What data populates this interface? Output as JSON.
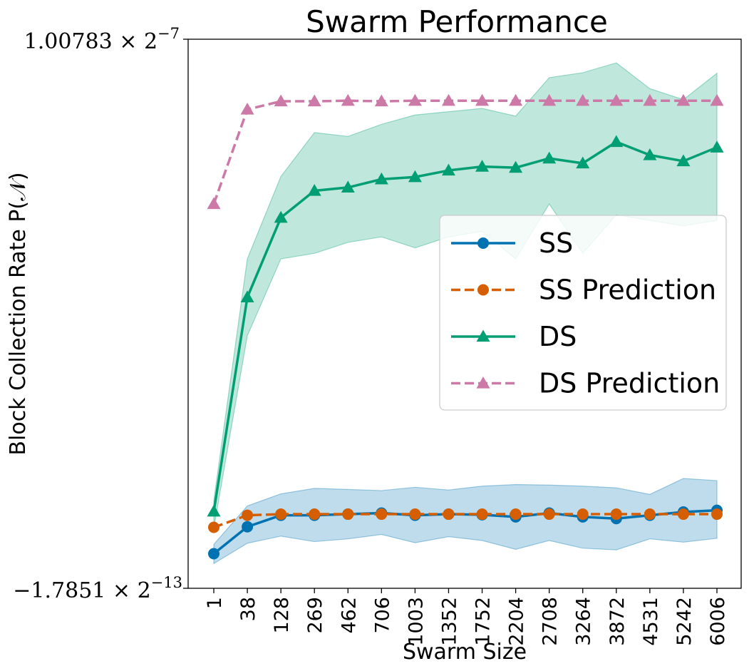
{
  "chart_data": {
    "type": "line",
    "title": "Swarm Performance",
    "xlabel": "Swarm Size",
    "ylabel": "Block Collection Rate P(𝒩)",
    "y_min_label": "−1.7851 × 2",
    "y_min_exp": "−13",
    "y_max_label": "1.00783 × 2",
    "y_max_exp": "−7",
    "ylim": [
      0,
      1
    ],
    "categories": [
      "1",
      "38",
      "128",
      "269",
      "462",
      "706",
      "1003",
      "1352",
      "1752",
      "2204",
      "2708",
      "3264",
      "3872",
      "4531",
      "5242",
      "6006"
    ],
    "legend_position": "center-right",
    "grid": false,
    "series": [
      {
        "name": "SS",
        "color": "#0072B2",
        "marker": "circle",
        "dash": false,
        "values": [
          0.063,
          0.112,
          0.133,
          0.133,
          0.135,
          0.137,
          0.133,
          0.135,
          0.134,
          0.13,
          0.137,
          0.13,
          0.127,
          0.133,
          0.139,
          0.142
        ],
        "band_low": [
          0.045,
          0.082,
          0.095,
          0.085,
          0.09,
          0.098,
          0.083,
          0.094,
          0.087,
          0.071,
          0.087,
          0.073,
          0.07,
          0.09,
          0.084,
          0.091
        ],
        "band_high": [
          0.08,
          0.15,
          0.172,
          0.182,
          0.18,
          0.178,
          0.184,
          0.179,
          0.186,
          0.189,
          0.188,
          0.186,
          0.183,
          0.171,
          0.2,
          0.196
        ]
      },
      {
        "name": "SS Prediction",
        "color": "#D55E00",
        "marker": "circle",
        "dash": true,
        "values": [
          0.111,
          0.133,
          0.135,
          0.135,
          0.135,
          0.135,
          0.135,
          0.135,
          0.135,
          0.135,
          0.135,
          0.135,
          0.135,
          0.135,
          0.135,
          0.135
        ]
      },
      {
        "name": "DS",
        "color": "#009E73",
        "marker": "triangle",
        "dash": false,
        "values": [
          0.14,
          0.53,
          0.675,
          0.724,
          0.73,
          0.745,
          0.749,
          0.761,
          0.768,
          0.766,
          0.783,
          0.774,
          0.813,
          0.789,
          0.778,
          0.803
        ],
        "band_low": [
          0.11,
          0.46,
          0.6,
          0.61,
          0.63,
          0.64,
          0.62,
          0.64,
          0.65,
          0.6,
          0.7,
          0.61,
          0.68,
          0.67,
          0.66,
          0.67
        ],
        "band_high": [
          0.16,
          0.6,
          0.75,
          0.83,
          0.823,
          0.845,
          0.862,
          0.868,
          0.874,
          0.86,
          0.93,
          0.939,
          0.957,
          0.91,
          0.89,
          0.938
        ]
      },
      {
        "name": "DS Prediction",
        "color": "#CC79A7",
        "marker": "triangle",
        "dash": true,
        "values": [
          0.7,
          0.872,
          0.887,
          0.887,
          0.888,
          0.887,
          0.888,
          0.888,
          0.888,
          0.888,
          0.888,
          0.888,
          0.888,
          0.888,
          0.888,
          0.888
        ]
      }
    ]
  }
}
